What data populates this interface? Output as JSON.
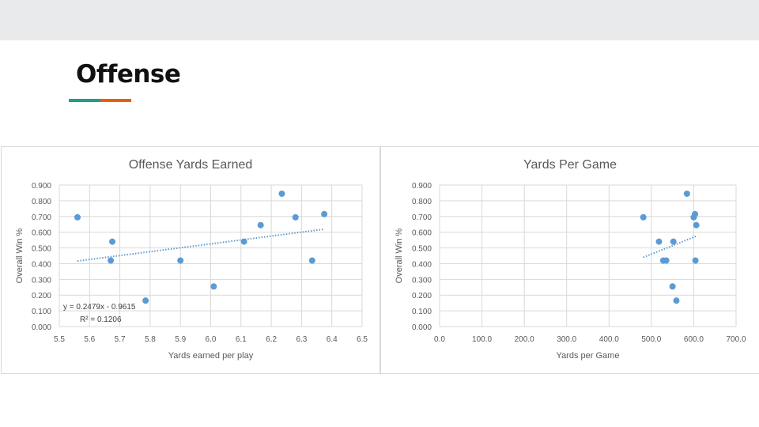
{
  "slide": {
    "title": "Offense",
    "accent_colors": [
      "#1f9e89",
      "#e5600c"
    ],
    "header_band_color": "#e8eaeb"
  },
  "chart_data": [
    {
      "type": "scatter",
      "title": "Offense Yards Earned",
      "xlabel": "Yards earned per play",
      "ylabel": "Overall Win %",
      "xlim": [
        5.5,
        6.5
      ],
      "ylim": [
        0.0,
        0.9
      ],
      "xticks": [
        "5.5",
        "5.6",
        "5.7",
        "5.8",
        "5.9",
        "6.0",
        "6.1",
        "6.2",
        "6.3",
        "6.4",
        "6.5"
      ],
      "yticks": [
        "0.000",
        "0.100",
        "0.200",
        "0.300",
        "0.400",
        "0.500",
        "0.600",
        "0.700",
        "0.800",
        "0.900"
      ],
      "grid": true,
      "point_color": "#5b9bd5",
      "points": [
        {
          "x": 5.56,
          "y": 0.695
        },
        {
          "x": 5.67,
          "y": 0.42
        },
        {
          "x": 5.675,
          "y": 0.54
        },
        {
          "x": 5.785,
          "y": 0.165
        },
        {
          "x": 5.9,
          "y": 0.42
        },
        {
          "x": 6.01,
          "y": 0.255
        },
        {
          "x": 6.11,
          "y": 0.54
        },
        {
          "x": 6.165,
          "y": 0.645
        },
        {
          "x": 6.235,
          "y": 0.845
        },
        {
          "x": 6.28,
          "y": 0.695
        },
        {
          "x": 6.335,
          "y": 0.42
        },
        {
          "x": 6.375,
          "y": 0.715
        }
      ],
      "trendline": {
        "style": "dotted",
        "x_range": [
          5.56,
          6.375
        ],
        "slope": 0.2479,
        "intercept": -0.9615
      },
      "annotations": [
        "y = 0.2479x - 0.9615",
        "R² = 0.1206"
      ]
    },
    {
      "type": "scatter",
      "title": "Yards Per Game",
      "xlabel": "Yards per Game",
      "ylabel": "Overall Win %",
      "xlim": [
        0,
        700
      ],
      "ylim": [
        0.0,
        0.9
      ],
      "xticks": [
        "0.0",
        "100.0",
        "200.0",
        "300.0",
        "400.0",
        "500.0",
        "600.0",
        "700.0"
      ],
      "yticks": [
        "0.000",
        "0.100",
        "0.200",
        "0.300",
        "0.400",
        "0.500",
        "0.600",
        "0.700",
        "0.800",
        "0.900"
      ],
      "grid": true,
      "point_color": "#5b9bd5",
      "points": [
        {
          "x": 481,
          "y": 0.695
        },
        {
          "x": 518,
          "y": 0.54
        },
        {
          "x": 528,
          "y": 0.42
        },
        {
          "x": 535,
          "y": 0.42
        },
        {
          "x": 550,
          "y": 0.255
        },
        {
          "x": 552,
          "y": 0.54
        },
        {
          "x": 559,
          "y": 0.165
        },
        {
          "x": 584,
          "y": 0.845
        },
        {
          "x": 600,
          "y": 0.695
        },
        {
          "x": 603,
          "y": 0.715
        },
        {
          "x": 604,
          "y": 0.42
        },
        {
          "x": 606,
          "y": 0.645
        }
      ],
      "trendline": {
        "style": "dotted",
        "points": [
          {
            "x": 481,
            "y": 0.44
          },
          {
            "x": 606,
            "y": 0.575
          }
        ]
      },
      "annotations": []
    }
  ]
}
